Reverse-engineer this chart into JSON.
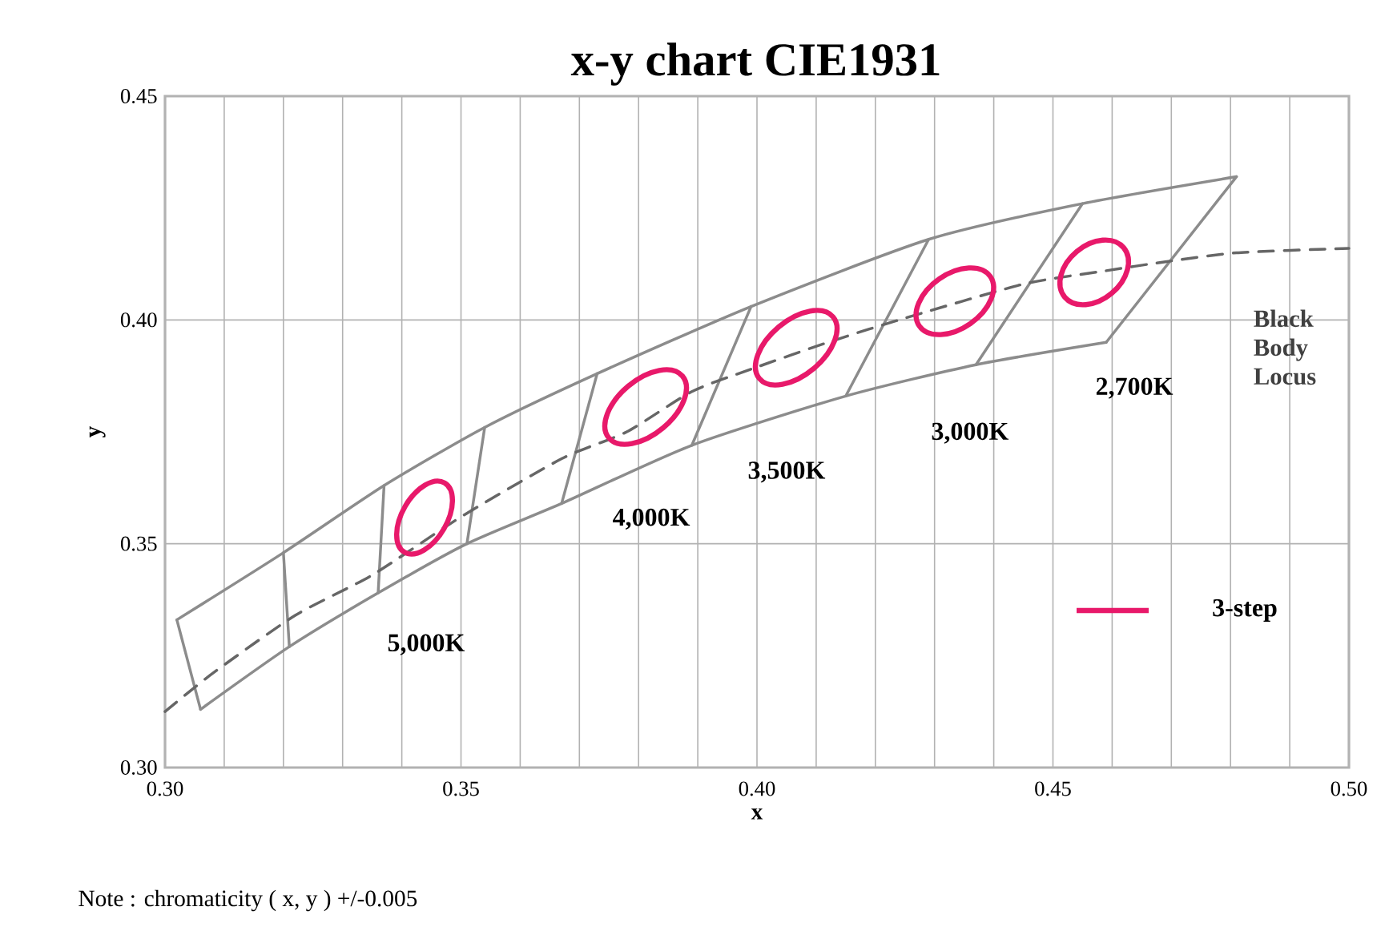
{
  "chart_data": {
    "type": "line",
    "title": "x-y chart  CIE1931",
    "xlabel": "x",
    "ylabel": "y",
    "xlim": [
      0.3,
      0.5
    ],
    "ylim": [
      0.3,
      0.45
    ],
    "xticks": [
      {
        "value": 0.3,
        "label": "0.30"
      },
      {
        "value": 0.31,
        "label": null
      },
      {
        "value": 0.32,
        "label": null
      },
      {
        "value": 0.33,
        "label": null
      },
      {
        "value": 0.34,
        "label": null
      },
      {
        "value": 0.35,
        "label": "0.35"
      },
      {
        "value": 0.36,
        "label": null
      },
      {
        "value": 0.37,
        "label": null
      },
      {
        "value": 0.38,
        "label": null
      },
      {
        "value": 0.39,
        "label": null
      },
      {
        "value": 0.4,
        "label": "0.40"
      },
      {
        "value": 0.41,
        "label": null
      },
      {
        "value": 0.42,
        "label": null
      },
      {
        "value": 0.43,
        "label": null
      },
      {
        "value": 0.44,
        "label": null
      },
      {
        "value": 0.45,
        "label": "0.45"
      },
      {
        "value": 0.46,
        "label": null
      },
      {
        "value": 0.47,
        "label": null
      },
      {
        "value": 0.48,
        "label": null
      },
      {
        "value": 0.49,
        "label": null
      },
      {
        "value": 0.5,
        "label": "0.50"
      }
    ],
    "yticks": [
      {
        "value": 0.3,
        "label": "0.30"
      },
      {
        "value": 0.35,
        "label": "0.35"
      },
      {
        "value": 0.4,
        "label": "0.40"
      },
      {
        "value": 0.45,
        "label": "0.45"
      }
    ],
    "grid": true,
    "marker": "none",
    "series": [
      {
        "color": "#8c8c8c",
        "x": [
          0.302,
          0.32,
          0.337,
          0.354,
          0.373,
          0.399,
          0.429,
          0.455,
          0.481
        ],
        "values": [
          0.333,
          0.348,
          0.363,
          0.376,
          0.388,
          0.403,
          0.418,
          0.426,
          0.432
        ]
      },
      {
        "color": "#8c8c8c",
        "x": [
          0.306,
          0.321,
          0.336,
          0.351,
          0.367,
          0.389,
          0.415,
          0.437,
          0.459
        ],
        "values": [
          0.313,
          0.327,
          0.339,
          0.35,
          0.359,
          0.372,
          0.383,
          0.39,
          0.395
        ]
      },
      {
        "color": "#8c8c8c",
        "x": [
          0.302,
          0.306
        ],
        "values": [
          0.333,
          0.313
        ]
      },
      {
        "color": "#8c8c8c",
        "x": [
          0.32,
          0.321
        ],
        "values": [
          0.348,
          0.327
        ]
      },
      {
        "color": "#8c8c8c",
        "x": [
          0.336,
          0.337
        ],
        "values": [
          0.339,
          0.363
        ]
      },
      {
        "color": "#8c8c8c",
        "x": [
          0.351,
          0.354
        ],
        "values": [
          0.35,
          0.376
        ]
      },
      {
        "color": "#8c8c8c",
        "x": [
          0.367,
          0.373
        ],
        "values": [
          0.359,
          0.388
        ]
      },
      {
        "color": "#8c8c8c",
        "x": [
          0.389,
          0.399
        ],
        "values": [
          0.372,
          0.403
        ]
      },
      {
        "color": "#8c8c8c",
        "x": [
          0.415,
          0.429
        ],
        "values": [
          0.383,
          0.418
        ]
      },
      {
        "color": "#8c8c8c",
        "x": [
          0.437,
          0.455
        ],
        "values": [
          0.39,
          0.426
        ]
      },
      {
        "color": "#8c8c8c",
        "x": [
          0.459,
          0.481
        ],
        "values": [
          0.395,
          0.432
        ]
      },
      {
        "color": "#666666",
        "line_style": "dashed",
        "x": [
          0.3,
          0.308,
          0.322,
          0.335,
          0.35,
          0.367,
          0.378,
          0.389,
          0.399,
          0.412,
          0.424,
          0.445,
          0.459,
          0.469,
          0.481,
          0.5
        ],
        "values": [
          0.3125,
          0.321,
          0.334,
          0.343,
          0.356,
          0.369,
          0.375,
          0.384,
          0.389,
          0.395,
          0.4,
          0.408,
          0.411,
          0.413,
          0.415,
          0.416
        ]
      }
    ],
    "annotations": [
      "5,000K",
      "4,000K",
      "3,500K",
      "3,000K",
      "2,700K",
      "Black Body Locus",
      "3-step",
      "Note : chromaticity ( x, y ) +/-0.005"
    ]
  }
}
